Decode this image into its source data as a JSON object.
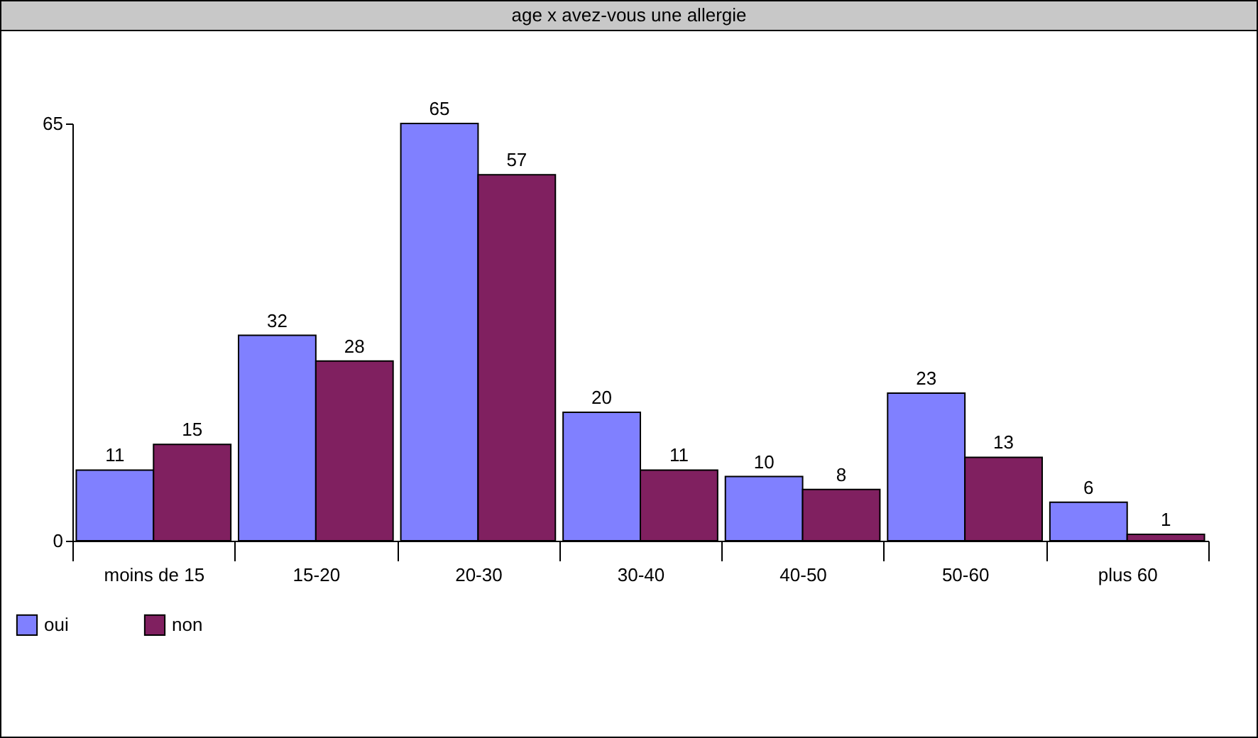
{
  "chart_data": {
    "type": "bar",
    "title": "age x avez-vous une allergie",
    "categories": [
      "moins de 15",
      "15-20",
      "20-30",
      "30-40",
      "40-50",
      "50-60",
      "plus 60"
    ],
    "series": [
      {
        "name": "oui",
        "color": "#8080ff",
        "values": [
          11,
          32,
          65,
          20,
          10,
          23,
          6
        ]
      },
      {
        "name": "non",
        "color": "#802060",
        "values": [
          15,
          28,
          57,
          11,
          8,
          13,
          1
        ]
      }
    ],
    "ylim": [
      0,
      65
    ],
    "yticks": [
      0,
      65
    ],
    "data_labels": true,
    "grid": false,
    "legend": "bottom left"
  }
}
